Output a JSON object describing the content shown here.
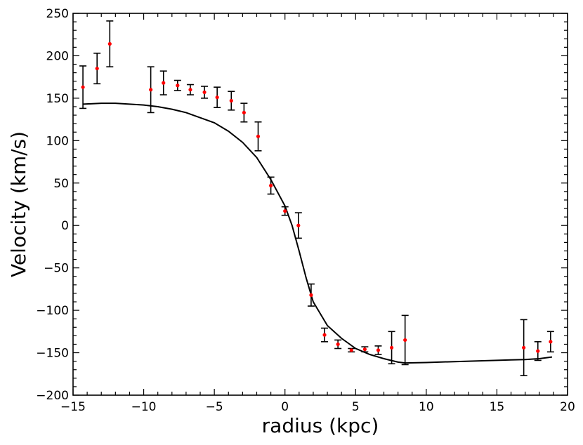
{
  "chart_data": {
    "type": "scatter",
    "title": "",
    "xlabel": "radius (kpc)",
    "ylabel": "Velocity (km/s)",
    "xlim": [
      -15,
      20
    ],
    "ylim": [
      -200,
      250
    ],
    "xticks": [
      -15,
      -10,
      -5,
      0,
      5,
      10,
      15,
      20
    ],
    "yticks": [
      -200,
      -150,
      -100,
      -50,
      0,
      50,
      100,
      150,
      200,
      250
    ],
    "xtick_labels": [
      "−15",
      "−10",
      "−5",
      "0",
      "5",
      "10",
      "15",
      "20"
    ],
    "ytick_labels": [
      "−200",
      "−150",
      "−100",
      "−50",
      "0",
      "50",
      "100",
      "150",
      "200",
      "250"
    ],
    "grid": false,
    "series": [
      {
        "kind": "points-with-errorbars",
        "marker_color": "#ff0000",
        "errorbar_color": "#000000",
        "points": [
          {
            "x": -14.3,
            "y": 163,
            "err": 25
          },
          {
            "x": -13.3,
            "y": 185,
            "err": 18
          },
          {
            "x": -12.4,
            "y": 214,
            "err": 27
          },
          {
            "x": -9.5,
            "y": 160,
            "err": 27
          },
          {
            "x": -8.6,
            "y": 168,
            "err": 14
          },
          {
            "x": -7.6,
            "y": 165,
            "err": 6
          },
          {
            "x": -6.7,
            "y": 160,
            "err": 6
          },
          {
            "x": -5.7,
            "y": 157,
            "err": 7
          },
          {
            "x": -4.8,
            "y": 151,
            "err": 12
          },
          {
            "x": -3.8,
            "y": 147,
            "err": 11
          },
          {
            "x": -2.9,
            "y": 133,
            "err": 11
          },
          {
            "x": -1.9,
            "y": 105,
            "err": 17
          },
          {
            "x": -1.0,
            "y": 47,
            "err": 10
          },
          {
            "x": 0.0,
            "y": 17,
            "err": 5
          },
          {
            "x": 0.95,
            "y": 0,
            "err": 15
          },
          {
            "x": 1.85,
            "y": -82,
            "err": 13
          },
          {
            "x": 2.8,
            "y": -129,
            "err": 8
          },
          {
            "x": 3.75,
            "y": -140,
            "err": 5
          },
          {
            "x": 4.7,
            "y": -147,
            "err": 2
          },
          {
            "x": 5.65,
            "y": -146,
            "err": 3
          },
          {
            "x": 6.6,
            "y": -147,
            "err": 5
          },
          {
            "x": 7.55,
            "y": -144,
            "err": 19
          },
          {
            "x": 8.5,
            "y": -135,
            "err": 29
          },
          {
            "x": 16.9,
            "y": -144,
            "err": 33
          },
          {
            "x": 17.9,
            "y": -148,
            "err": 11
          },
          {
            "x": 18.8,
            "y": -137,
            "err": 12
          }
        ]
      },
      {
        "kind": "model-curve",
        "color": "#000000",
        "x": [
          -14.3,
          -13.0,
          -12.0,
          -11.0,
          -10.0,
          -9.0,
          -8.0,
          -7.0,
          -6.0,
          -5.0,
          -4.0,
          -3.0,
          -2.0,
          -1.0,
          0.0,
          0.5,
          1.0,
          1.5,
          2.0,
          3.0,
          4.0,
          5.0,
          6.0,
          7.0,
          8.0,
          8.5,
          10.0,
          12.0,
          14.0,
          16.0,
          17.0,
          18.0,
          18.9
        ],
        "y": [
          143,
          144,
          144,
          143,
          142,
          140,
          137,
          133,
          127,
          121,
          111,
          98,
          80,
          54,
          23,
          0,
          -30,
          -62,
          -90,
          -118,
          -133,
          -145,
          -152,
          -157,
          -161,
          -162,
          -161.5,
          -160.5,
          -159.5,
          -158.5,
          -158,
          -157,
          -155
        ]
      }
    ]
  }
}
